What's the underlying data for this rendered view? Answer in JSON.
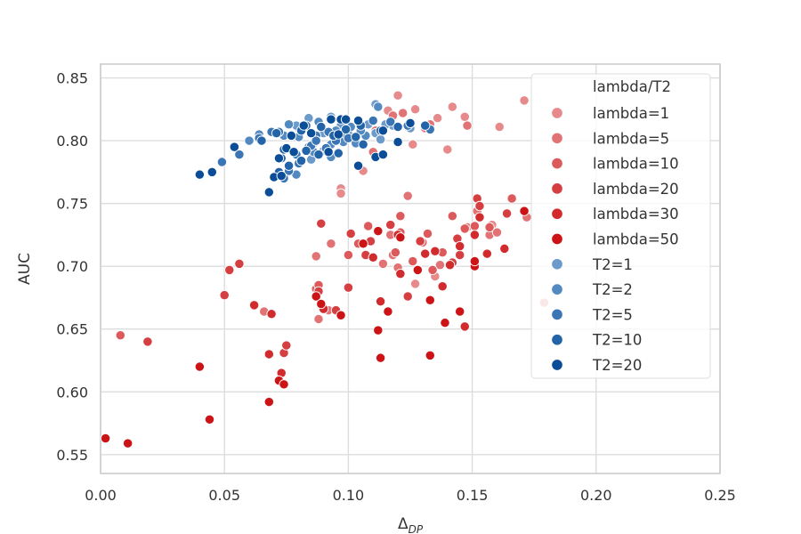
{
  "chart_data": {
    "type": "scatter",
    "title": "",
    "xlabel": "Δ",
    "xlabel_subscript": "DP",
    "ylabel": "AUC",
    "xlim": [
      0.0,
      0.25
    ],
    "ylim": [
      0.535,
      0.861
    ],
    "xticks": [
      "0.00",
      "0.05",
      "0.10",
      "0.15",
      "0.20",
      "0.25"
    ],
    "xtick_values": [
      0.0,
      0.05,
      0.1,
      0.15,
      0.2,
      0.25
    ],
    "yticks": [
      "0.55",
      "0.60",
      "0.65",
      "0.70",
      "0.75",
      "0.80",
      "0.85"
    ],
    "ytick_values": [
      0.55,
      0.6,
      0.65,
      0.7,
      0.75,
      0.8,
      0.85
    ],
    "grid": true,
    "legend": {
      "title": "lambda/T2",
      "placement": "top-right",
      "entries": [
        {
          "label": "lambda=1",
          "color": "#e68a8c"
        },
        {
          "label": "lambda=5",
          "color": "#e27375"
        },
        {
          "label": "lambda=10",
          "color": "#dc5a5c"
        },
        {
          "label": "lambda=20",
          "color": "#d63f42"
        },
        {
          "label": "lambda=30",
          "color": "#d22b2e"
        },
        {
          "label": "lambda=50",
          "color": "#cc1416"
        },
        {
          "label": "T2=1",
          "color": "#6b9acb"
        },
        {
          "label": "T2=2",
          "color": "#5289c1"
        },
        {
          "label": "T2=5",
          "color": "#3a75b5"
        },
        {
          "label": "T2=10",
          "color": "#2363a8"
        },
        {
          "label": "T2=20",
          "color": "#0b4e97"
        }
      ]
    },
    "series": [
      {
        "name": "lambda=1",
        "points": [
          [
            0.12,
            0.836
          ],
          [
            0.127,
            0.825
          ],
          [
            0.142,
            0.827
          ],
          [
            0.136,
            0.818
          ],
          [
            0.147,
            0.819
          ],
          [
            0.161,
            0.811
          ],
          [
            0.171,
            0.832
          ],
          [
            0.124,
            0.811
          ],
          [
            0.116,
            0.824
          ],
          [
            0.126,
            0.797
          ],
          [
            0.14,
            0.793
          ],
          [
            0.097,
            0.762
          ],
          [
            0.097,
            0.758
          ],
          [
            0.106,
            0.776
          ],
          [
            0.127,
            0.686
          ],
          [
            0.135,
            0.692
          ],
          [
            0.158,
            0.733
          ],
          [
            0.179,
            0.671
          ]
        ]
      },
      {
        "name": "lambda=5",
        "points": [
          [
            0.122,
            0.822
          ],
          [
            0.131,
            0.81
          ],
          [
            0.111,
            0.808
          ],
          [
            0.11,
            0.791
          ],
          [
            0.118,
            0.82
          ],
          [
            0.148,
            0.812
          ],
          [
            0.133,
            0.813
          ],
          [
            0.124,
            0.756
          ],
          [
            0.087,
            0.708
          ],
          [
            0.093,
            0.718
          ],
          [
            0.117,
            0.725
          ],
          [
            0.13,
            0.719
          ],
          [
            0.148,
            0.731
          ],
          [
            0.152,
            0.744
          ],
          [
            0.157,
            0.725
          ],
          [
            0.16,
            0.727
          ],
          [
            0.172,
            0.739
          ],
          [
            0.088,
            0.658
          ],
          [
            0.092,
            0.665
          ],
          [
            0.114,
            0.702
          ],
          [
            0.12,
            0.699
          ],
          [
            0.137,
            0.701
          ],
          [
            0.118,
            0.709
          ],
          [
            0.066,
            0.664
          ]
        ]
      },
      {
        "name": "lambda=10",
        "points": [
          [
            0.121,
            0.74
          ],
          [
            0.142,
            0.74
          ],
          [
            0.104,
            0.718
          ],
          [
            0.132,
            0.726
          ],
          [
            0.166,
            0.754
          ],
          [
            0.1,
            0.709
          ],
          [
            0.126,
            0.704
          ],
          [
            0.134,
            0.697
          ],
          [
            0.147,
            0.73
          ],
          [
            0.151,
            0.732
          ],
          [
            0.157,
            0.731
          ],
          [
            0.108,
            0.732
          ],
          [
            0.119,
            0.711
          ],
          [
            0.008,
            0.645
          ],
          [
            0.087,
            0.682
          ],
          [
            0.088,
            0.685
          ],
          [
            0.121,
            0.727
          ],
          [
            0.138,
            0.711
          ]
        ]
      },
      {
        "name": "lambda=20",
        "points": [
          [
            0.089,
            0.734
          ],
          [
            0.117,
            0.733
          ],
          [
            0.101,
            0.726
          ],
          [
            0.109,
            0.72
          ],
          [
            0.129,
            0.72
          ],
          [
            0.152,
            0.754
          ],
          [
            0.153,
            0.748
          ],
          [
            0.144,
            0.722
          ],
          [
            0.164,
            0.742
          ],
          [
            0.056,
            0.702
          ],
          [
            0.052,
            0.697
          ],
          [
            0.05,
            0.677
          ],
          [
            0.095,
            0.665
          ],
          [
            0.142,
            0.703
          ],
          [
            0.145,
            0.709
          ],
          [
            0.019,
            0.64
          ],
          [
            0.074,
            0.631
          ],
          [
            0.075,
            0.637
          ],
          [
            0.088,
            0.68
          ],
          [
            0.124,
            0.676
          ],
          [
            0.133,
            0.673
          ],
          [
            0.1,
            0.683
          ],
          [
            0.107,
            0.709
          ]
        ]
      },
      {
        "name": "lambda=30",
        "points": [
          [
            0.11,
            0.707
          ],
          [
            0.135,
            0.712
          ],
          [
            0.141,
            0.701
          ],
          [
            0.131,
            0.71
          ],
          [
            0.153,
            0.739
          ],
          [
            0.062,
            0.669
          ],
          [
            0.069,
            0.662
          ],
          [
            0.087,
            0.676
          ],
          [
            0.068,
            0.63
          ],
          [
            0.073,
            0.615
          ],
          [
            0.12,
            0.725
          ],
          [
            0.145,
            0.716
          ],
          [
            0.151,
            0.725
          ],
          [
            0.163,
            0.714
          ],
          [
            0.156,
            0.71
          ],
          [
            0.097,
            0.661
          ],
          [
            0.121,
            0.694
          ],
          [
            0.113,
            0.672
          ],
          [
            0.147,
            0.652
          ],
          [
            0.09,
            0.666
          ],
          [
            0.138,
            0.684
          ]
        ]
      },
      {
        "name": "lambda=50",
        "points": [
          [
            0.106,
            0.718
          ],
          [
            0.112,
            0.728
          ],
          [
            0.121,
            0.723
          ],
          [
            0.151,
            0.7
          ],
          [
            0.171,
            0.744
          ],
          [
            0.068,
            0.592
          ],
          [
            0.04,
            0.62
          ],
          [
            0.044,
            0.578
          ],
          [
            0.002,
            0.563
          ],
          [
            0.011,
            0.559
          ],
          [
            0.072,
            0.609
          ],
          [
            0.074,
            0.606
          ],
          [
            0.087,
            0.676
          ],
          [
            0.089,
            0.67
          ],
          [
            0.097,
            0.661
          ],
          [
            0.112,
            0.649
          ],
          [
            0.113,
            0.627
          ],
          [
            0.116,
            0.664
          ],
          [
            0.133,
            0.629
          ],
          [
            0.139,
            0.655
          ],
          [
            0.145,
            0.664
          ],
          [
            0.128,
            0.697
          ],
          [
            0.151,
            0.704
          ],
          [
            0.133,
            0.673
          ]
        ]
      },
      {
        "name": "T2=1",
        "points": [
          [
            0.084,
            0.818
          ],
          [
            0.093,
            0.819
          ],
          [
            0.08,
            0.81
          ],
          [
            0.097,
            0.812
          ],
          [
            0.1,
            0.805
          ],
          [
            0.111,
            0.806
          ],
          [
            0.118,
            0.812
          ],
          [
            0.111,
            0.829
          ],
          [
            0.079,
            0.812
          ],
          [
            0.086,
            0.798
          ],
          [
            0.09,
            0.792
          ],
          [
            0.108,
            0.813
          ],
          [
            0.113,
            0.801
          ],
          [
            0.125,
            0.81
          ],
          [
            0.085,
            0.785
          ],
          [
            0.098,
            0.803
          ],
          [
            0.09,
            0.806
          ],
          [
            0.115,
            0.813
          ]
        ]
      },
      {
        "name": "T2=2",
        "points": [
          [
            0.076,
            0.813
          ],
          [
            0.088,
            0.815
          ],
          [
            0.08,
            0.803
          ],
          [
            0.095,
            0.808
          ],
          [
            0.101,
            0.811
          ],
          [
            0.103,
            0.798
          ],
          [
            0.112,
            0.827
          ],
          [
            0.107,
            0.804
          ],
          [
            0.131,
            0.812
          ],
          [
            0.074,
            0.804
          ],
          [
            0.06,
            0.8
          ],
          [
            0.064,
            0.805
          ],
          [
            0.086,
            0.791
          ],
          [
            0.093,
            0.797
          ],
          [
            0.098,
            0.799
          ],
          [
            0.079,
            0.773
          ],
          [
            0.105,
            0.808
          ],
          [
            0.093,
            0.787
          ],
          [
            0.084,
            0.795
          ]
        ]
      },
      {
        "name": "T2=5",
        "points": [
          [
            0.064,
            0.802
          ],
          [
            0.069,
            0.807
          ],
          [
            0.072,
            0.807
          ],
          [
            0.083,
            0.812
          ],
          [
            0.087,
            0.804
          ],
          [
            0.092,
            0.807
          ],
          [
            0.095,
            0.8
          ],
          [
            0.098,
            0.806
          ],
          [
            0.11,
            0.816
          ],
          [
            0.117,
            0.815
          ],
          [
            0.124,
            0.812
          ],
          [
            0.133,
            0.809
          ],
          [
            0.049,
            0.783
          ],
          [
            0.056,
            0.789
          ],
          [
            0.085,
            0.796
          ],
          [
            0.091,
            0.794
          ],
          [
            0.076,
            0.776
          ],
          [
            0.08,
            0.782
          ],
          [
            0.074,
            0.77
          ],
          [
            0.087,
            0.8
          ],
          [
            0.079,
            0.789
          ],
          [
            0.1,
            0.802
          ]
        ]
      },
      {
        "name": "T2=10",
        "points": [
          [
            0.065,
            0.8
          ],
          [
            0.071,
            0.806
          ],
          [
            0.081,
            0.808
          ],
          [
            0.089,
            0.811
          ],
          [
            0.094,
            0.804
          ],
          [
            0.099,
            0.809
          ],
          [
            0.105,
            0.812
          ],
          [
            0.113,
            0.808
          ],
          [
            0.12,
            0.811
          ],
          [
            0.131,
            0.812
          ],
          [
            0.106,
            0.797
          ],
          [
            0.073,
            0.786
          ],
          [
            0.076,
            0.78
          ],
          [
            0.081,
            0.784
          ],
          [
            0.088,
            0.789
          ],
          [
            0.072,
            0.775
          ],
          [
            0.083,
            0.792
          ],
          [
            0.096,
            0.79
          ],
          [
            0.103,
            0.803
          ],
          [
            0.074,
            0.793
          ]
        ]
      },
      {
        "name": "T2=20",
        "points": [
          [
            0.04,
            0.773
          ],
          [
            0.045,
            0.775
          ],
          [
            0.068,
            0.759
          ],
          [
            0.07,
            0.771
          ],
          [
            0.073,
            0.772
          ],
          [
            0.072,
            0.786
          ],
          [
            0.075,
            0.794
          ],
          [
            0.077,
            0.804
          ],
          [
            0.082,
            0.812
          ],
          [
            0.085,
            0.806
          ],
          [
            0.093,
            0.817
          ],
          [
            0.097,
            0.817
          ],
          [
            0.099,
            0.817
          ],
          [
            0.104,
            0.816
          ],
          [
            0.114,
            0.808
          ],
          [
            0.12,
            0.799
          ],
          [
            0.104,
            0.78
          ],
          [
            0.111,
            0.787
          ],
          [
            0.114,
            0.789
          ],
          [
            0.125,
            0.814
          ],
          [
            0.054,
            0.795
          ],
          [
            0.092,
            0.791
          ],
          [
            0.078,
            0.791
          ],
          [
            0.096,
            0.805
          ]
        ]
      }
    ]
  }
}
